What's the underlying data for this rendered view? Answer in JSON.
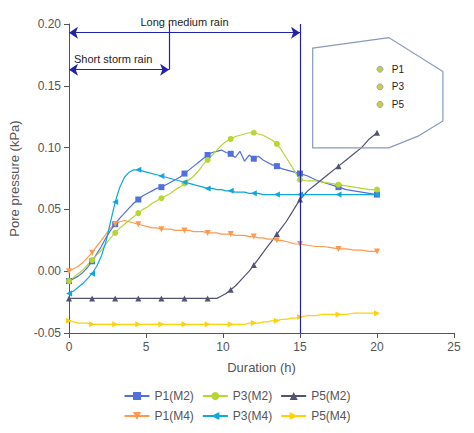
{
  "chart_data": {
    "type": "line",
    "xlabel": "Duration (h)",
    "ylabel": "Pore pressure (kPa)",
    "xlim": [
      0,
      25
    ],
    "ylim": [
      -0.05,
      0.2
    ],
    "xticks": [
      0,
      5,
      10,
      15,
      20,
      25
    ],
    "yticks": [
      -0.05,
      {
        "value": 0.0,
        "label": "0.00"
      },
      0.05,
      {
        "value": 0.1,
        "label": "0.10"
      },
      0.15,
      {
        "value": 0.2,
        "label": "0.20"
      }
    ],
    "grid": false,
    "legend": "bottom",
    "x": [
      0.0,
      0.3,
      0.6,
      0.9,
      1.2,
      1.5,
      1.8,
      2.1,
      2.4,
      2.7,
      3.0,
      3.3,
      3.6,
      3.9,
      4.2,
      4.5,
      4.8,
      5.1,
      5.4,
      5.7,
      6.0,
      6.3,
      6.6,
      6.9,
      7.2,
      7.5,
      7.8,
      8.1,
      8.4,
      8.7,
      9.0,
      9.3,
      9.6,
      9.9,
      10.2,
      10.5,
      10.8,
      11.1,
      11.4,
      11.7,
      12.0,
      12.3,
      12.6,
      12.9,
      13.2,
      13.5,
      13.8,
      14.1,
      14.4,
      14.7,
      15.0,
      15.5,
      16.0,
      16.5,
      17.0,
      17.5,
      18.0,
      18.5,
      19.0,
      19.5,
      20.0
    ],
    "series": [
      {
        "name": "P1(M2)",
        "marker": "square",
        "values": [
          -0.008,
          -0.006,
          -0.004,
          -0.001,
          0.003,
          0.008,
          0.014,
          0.02,
          0.027,
          0.033,
          0.038,
          0.043,
          0.047,
          0.051,
          0.055,
          0.058,
          0.061,
          0.063,
          0.065,
          0.067,
          0.068,
          0.07,
          0.072,
          0.074,
          0.076,
          0.079,
          0.082,
          0.085,
          0.088,
          0.091,
          0.094,
          0.096,
          0.097,
          0.098,
          0.096,
          0.095,
          0.092,
          0.097,
          0.089,
          0.094,
          0.091,
          0.093,
          0.09,
          0.088,
          0.086,
          0.085,
          0.083,
          0.082,
          0.081,
          0.08,
          0.079,
          0.077,
          0.074,
          0.072,
          0.07,
          0.068,
          0.066,
          0.065,
          0.064,
          0.063,
          0.062
        ]
      },
      {
        "name": "P3(M2)",
        "marker": "circle",
        "values": [
          -0.008,
          -0.005,
          -0.002,
          0.001,
          0.005,
          0.009,
          0.013,
          0.017,
          0.022,
          0.027,
          0.031,
          0.035,
          0.038,
          0.041,
          0.044,
          0.047,
          0.05,
          0.052,
          0.055,
          0.057,
          0.059,
          0.061,
          0.063,
          0.066,
          0.068,
          0.071,
          0.074,
          0.077,
          0.081,
          0.086,
          0.09,
          0.094,
          0.098,
          0.102,
          0.105,
          0.107,
          0.109,
          0.11,
          0.111,
          0.112,
          0.112,
          0.111,
          0.11,
          0.108,
          0.106,
          0.103,
          0.098,
          0.092,
          0.086,
          0.08,
          0.074,
          0.073,
          0.073,
          0.072,
          0.071,
          0.07,
          0.069,
          0.068,
          0.067,
          0.066,
          0.066
        ]
      },
      {
        "name": "P5(M2)",
        "marker": "triangle-up",
        "values": [
          -0.022,
          -0.022,
          -0.022,
          -0.022,
          -0.022,
          -0.022,
          -0.022,
          -0.022,
          -0.022,
          -0.022,
          -0.022,
          -0.022,
          -0.022,
          -0.022,
          -0.022,
          -0.022,
          -0.022,
          -0.022,
          -0.022,
          -0.022,
          -0.022,
          -0.022,
          -0.022,
          -0.022,
          -0.022,
          -0.022,
          -0.022,
          -0.022,
          -0.022,
          -0.022,
          -0.022,
          -0.022,
          -0.022,
          -0.02,
          -0.018,
          -0.015,
          -0.012,
          -0.008,
          -0.004,
          0.0,
          0.005,
          0.01,
          0.015,
          0.02,
          0.025,
          0.03,
          0.035,
          0.04,
          0.046,
          0.052,
          0.058,
          0.065,
          0.07,
          0.075,
          0.08,
          0.085,
          0.09,
          0.095,
          0.1,
          0.107,
          0.112
        ]
      },
      {
        "name": "P1(M4)",
        "marker": "triangle-down",
        "values": [
          0.0,
          0.002,
          0.004,
          0.007,
          0.011,
          0.015,
          0.02,
          0.025,
          0.03,
          0.035,
          0.038,
          0.04,
          0.041,
          0.04,
          0.039,
          0.038,
          0.037,
          0.036,
          0.035,
          0.035,
          0.034,
          0.034,
          0.034,
          0.033,
          0.033,
          0.033,
          0.033,
          0.032,
          0.032,
          0.032,
          0.031,
          0.031,
          0.031,
          0.03,
          0.03,
          0.03,
          0.029,
          0.029,
          0.029,
          0.028,
          0.028,
          0.027,
          0.027,
          0.026,
          0.026,
          0.025,
          0.025,
          0.024,
          0.023,
          0.022,
          0.022,
          0.021,
          0.02,
          0.02,
          0.019,
          0.018,
          0.018,
          0.017,
          0.017,
          0.016,
          0.016
        ]
      },
      {
        "name": "P3(M4)",
        "marker": "triangle-left",
        "values": [
          -0.018,
          -0.016,
          -0.013,
          -0.01,
          -0.006,
          -0.002,
          0.004,
          0.012,
          0.024,
          0.04,
          0.056,
          0.068,
          0.076,
          0.08,
          0.082,
          0.082,
          0.081,
          0.08,
          0.079,
          0.078,
          0.077,
          0.076,
          0.075,
          0.074,
          0.073,
          0.072,
          0.071,
          0.07,
          0.069,
          0.068,
          0.067,
          0.067,
          0.066,
          0.066,
          0.065,
          0.065,
          0.064,
          0.064,
          0.064,
          0.063,
          0.063,
          0.063,
          0.062,
          0.062,
          0.062,
          0.062,
          0.062,
          0.062,
          0.062,
          0.062,
          0.062,
          0.062,
          0.062,
          0.062,
          0.062,
          0.062,
          0.062,
          0.062,
          0.062,
          0.062,
          0.062
        ]
      },
      {
        "name": "P5(M4)",
        "marker": "triangle-right",
        "values": [
          -0.04,
          -0.041,
          -0.042,
          -0.042,
          -0.042,
          -0.043,
          -0.043,
          -0.043,
          -0.043,
          -0.043,
          -0.043,
          -0.043,
          -0.043,
          -0.043,
          -0.043,
          -0.043,
          -0.043,
          -0.043,
          -0.043,
          -0.043,
          -0.043,
          -0.043,
          -0.043,
          -0.043,
          -0.043,
          -0.043,
          -0.043,
          -0.043,
          -0.043,
          -0.043,
          -0.043,
          -0.043,
          -0.043,
          -0.043,
          -0.043,
          -0.043,
          -0.043,
          -0.043,
          -0.043,
          -0.042,
          -0.042,
          -0.042,
          -0.041,
          -0.041,
          -0.04,
          -0.04,
          -0.039,
          -0.039,
          -0.038,
          -0.038,
          -0.037,
          -0.036,
          -0.036,
          -0.035,
          -0.035,
          -0.035,
          -0.035,
          -0.034,
          -0.034,
          -0.034,
          -0.034
        ]
      }
    ],
    "annotations": [
      {
        "text": "Long medium rain",
        "x": [
          0,
          15.0
        ],
        "y": 0.193,
        "vline_y": [
          -0.05,
          0.2
        ],
        "color": "#2222aa"
      },
      {
        "text": "Short storm rain",
        "x": [
          0,
          6.5
        ],
        "y": 0.163,
        "vline_y": [
          0.163,
          0.2
        ],
        "color": "#2222aa"
      }
    ],
    "inset": {
      "labels": [
        "P1",
        "P3",
        "P5"
      ],
      "color": "#8899bb",
      "marker_color": "#cccc44"
    }
  }
}
